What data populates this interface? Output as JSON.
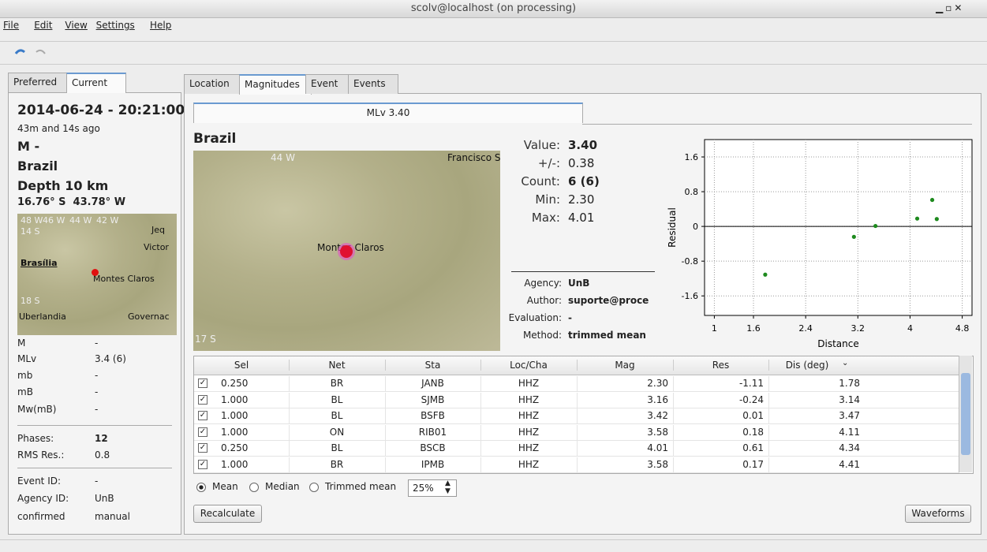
{
  "window": {
    "title": "scolv@localhost (on processing)"
  },
  "menu": [
    "File",
    "Edit",
    "View",
    "Settings",
    "Help"
  ],
  "left_panel": {
    "tabs": [
      "Preferred",
      "Current"
    ],
    "datetime": "2014-06-24 - 20:21:00",
    "ago": "43m and 14s ago",
    "magnitude": "M -",
    "region": "Brazil",
    "depth": "Depth 10 km",
    "coordinates": "16.76° S  43.78° W",
    "map_labels": [
      "48 W",
      "46 W",
      "44 W",
      "42 W",
      "14 S",
      "Brasília",
      "Montes Claros",
      "18 S",
      "Uberlandia",
      "Governac",
      "Victor",
      "Jeq"
    ],
    "magnitudes": [
      [
        "M",
        "-"
      ],
      [
        "MLv",
        "3.4 (6)"
      ],
      [
        "mb",
        "-"
      ],
      [
        "mB",
        "-"
      ],
      [
        "Mw(mB)",
        "-"
      ]
    ],
    "quality": [
      [
        "Phases:",
        "12"
      ],
      [
        "RMS Res.:",
        "0.8"
      ]
    ],
    "ids": [
      [
        "Event ID:",
        "-"
      ],
      [
        "Agency ID:",
        "UnB"
      ],
      [
        "confirmed",
        "manual"
      ]
    ]
  },
  "main_tabs": [
    "Location",
    "Magnitudes",
    "Event",
    "Events"
  ],
  "magnitude_tab": "MLv 3.40",
  "region_title": "Brazil",
  "map_labels": [
    "44 W",
    "Francisco S",
    "Montes Claros",
    "17 S"
  ],
  "stats": [
    [
      "Value:",
      "3.40"
    ],
    [
      "+/-:",
      "0.38"
    ],
    [
      "Count:",
      "6 (6)"
    ],
    [
      "Min:",
      "2.30"
    ],
    [
      "Max:",
      "4.01"
    ]
  ],
  "details": [
    [
      "Agency:",
      "UnB"
    ],
    [
      "Author:",
      "suporte@proce"
    ],
    [
      "Evaluation:",
      "-"
    ],
    [
      "Method:",
      "trimmed mean"
    ]
  ],
  "chart_data": {
    "type": "scatter",
    "x_label": "Distance",
    "y_label": "Residual",
    "x": [
      1.78,
      3.14,
      3.47,
      4.11,
      4.34,
      4.41
    ],
    "y": [
      -1.11,
      -0.24,
      0.01,
      0.18,
      0.61,
      0.17
    ],
    "color": "#1e8a1e",
    "xlim": [
      0.85,
      4.95
    ],
    "xticks": [
      1,
      1.6,
      2.4,
      3.2,
      4,
      4.8
    ],
    "ylim": [
      -2.05,
      2.0
    ],
    "yticks": [
      -1.6,
      -0.8,
      0,
      0.8,
      1.6
    ],
    "grid": true
  },
  "table": {
    "columns": [
      "Sel",
      "Net",
      "Sta",
      "Loc/Cha",
      "Mag",
      "Res",
      "Dis (deg)"
    ],
    "rows": [
      [
        "0.250",
        "BR",
        "JANB",
        "HHZ",
        "2.30",
        "-1.11",
        "1.78"
      ],
      [
        "1.000",
        "BL",
        "SJMB",
        "HHZ",
        "3.16",
        "-0.24",
        "3.14"
      ],
      [
        "1.000",
        "BL",
        "BSFB",
        "HHZ",
        "3.42",
        "0.01",
        "3.47"
      ],
      [
        "1.000",
        "ON",
        "RIB01",
        "HHZ",
        "3.58",
        "0.18",
        "4.11"
      ],
      [
        "0.250",
        "BL",
        "BSCB",
        "HHZ",
        "4.01",
        "0.61",
        "4.34"
      ],
      [
        "1.000",
        "BR",
        "IPMB",
        "HHZ",
        "3.58",
        "0.17",
        "4.41"
      ]
    ]
  },
  "methods": [
    "Mean",
    "Median",
    "Trimmed mean"
  ],
  "trim_value": "25%",
  "buttons": [
    "Recalculate",
    "Waveforms"
  ]
}
